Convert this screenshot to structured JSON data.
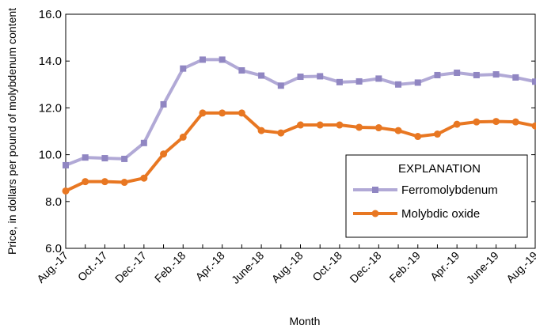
{
  "chart_data": {
    "type": "line",
    "xlabel": "Month",
    "ylabel": "Price, in dollars per pound of molybdenum content",
    "ylim": [
      6.0,
      16.0
    ],
    "yticks": [
      "6.0",
      "8.0",
      "10.0",
      "12.0",
      "14.0",
      "16.0"
    ],
    "x": [
      "Aug.-17",
      "Sep.-17",
      "Oct.-17",
      "Nov.-17",
      "Dec.-17",
      "Jan.-18",
      "Feb.-18",
      "Mar.-18",
      "Apr.-18",
      "May-18",
      "June-18",
      "July-18",
      "Aug.-18",
      "Sep.-18",
      "Oct.-18",
      "Nov.-18",
      "Dec.-18",
      "Jan.-19",
      "Feb.-19",
      "Mar.-19",
      "Apr.-19",
      "May-19",
      "June-19",
      "July-19",
      "Aug.-19"
    ],
    "x_tick_labels": [
      "Aug.-17",
      "Oct.-17",
      "Dec.-17",
      "Feb.-18",
      "Apr.-18",
      "June-18",
      "Aug.-18",
      "Oct.-18",
      "Dec.-18",
      "Feb.-19",
      "Apr.-19",
      "June-19",
      "Aug.-19"
    ],
    "legend": {
      "title": "EXPLANATION",
      "placement": "lower-right"
    },
    "series": [
      {
        "name": "Ferromolybdenum",
        "color": "#b1a9d6",
        "marker": "square",
        "values": [
          9.55,
          9.88,
          9.85,
          9.82,
          10.5,
          12.15,
          13.68,
          14.06,
          14.06,
          13.6,
          13.38,
          12.95,
          13.33,
          13.35,
          13.1,
          13.13,
          13.25,
          13.0,
          13.08,
          13.4,
          13.5,
          13.4,
          13.43,
          13.3,
          13.12
        ]
      },
      {
        "name": "Molybdic oxide",
        "color": "#e87722",
        "marker": "circle",
        "values": [
          8.45,
          8.85,
          8.85,
          8.82,
          9.0,
          10.03,
          10.75,
          11.78,
          11.78,
          11.78,
          11.03,
          10.93,
          11.27,
          11.27,
          11.27,
          11.17,
          11.15,
          11.03,
          10.78,
          10.88,
          11.3,
          11.4,
          11.42,
          11.4,
          11.23
        ]
      }
    ]
  }
}
